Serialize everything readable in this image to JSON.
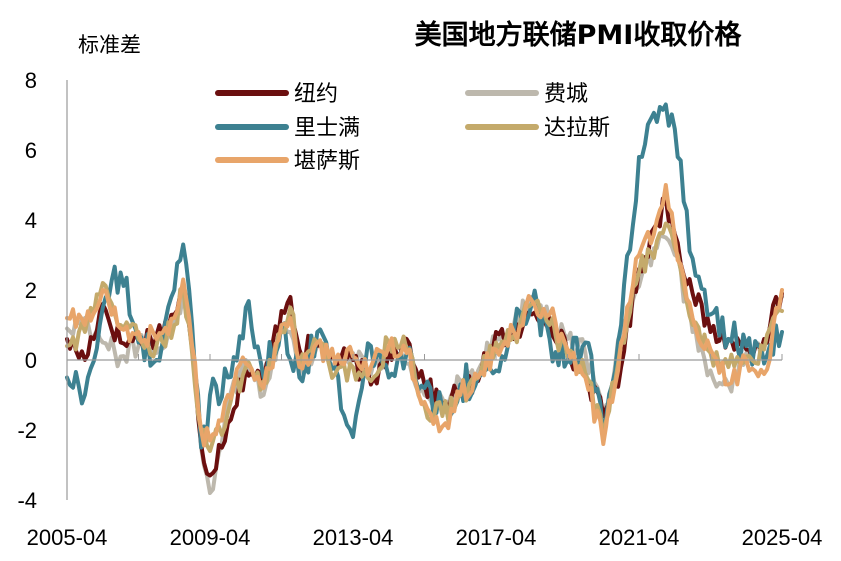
{
  "chart_data": {
    "type": "line",
    "title": "美国地方联储PMI收取价格",
    "ylabel": "标准差",
    "xlabel": "",
    "ylim": [
      -4,
      8
    ],
    "yticks": [
      -4,
      -2,
      0,
      2,
      4,
      6,
      8
    ],
    "xlim": [
      "2005-04",
      "2025-04"
    ],
    "xticks": [
      "2005-04",
      "2009-04",
      "2013-04",
      "2017-04",
      "2021-04",
      "2025-04"
    ],
    "grid": false,
    "legend_position": "top-left",
    "series": [
      {
        "name": "纽约",
        "color": "#6b0f0f",
        "points": [
          [
            "2005-04",
            0.6
          ],
          [
            "2005-10",
            0.0
          ],
          [
            "2006-04",
            1.6
          ],
          [
            "2006-10",
            0.5
          ],
          [
            "2007-04",
            0.6
          ],
          [
            "2007-10",
            0.7
          ],
          [
            "2008-04",
            1.3
          ],
          [
            "2008-07",
            2.0
          ],
          [
            "2008-10",
            0.3
          ],
          [
            "2009-01",
            -2.4
          ],
          [
            "2009-04",
            -3.3
          ],
          [
            "2009-10",
            -1.8
          ],
          [
            "2010-04",
            -0.3
          ],
          [
            "2010-10",
            -0.6
          ],
          [
            "2011-04",
            1.4
          ],
          [
            "2011-07",
            1.8
          ],
          [
            "2011-10",
            0.3
          ],
          [
            "2012-04",
            0.4
          ],
          [
            "2012-10",
            0.0
          ],
          [
            "2013-04",
            0.0
          ],
          [
            "2013-10",
            -0.7
          ],
          [
            "2014-04",
            0.2
          ],
          [
            "2014-10",
            0.6
          ],
          [
            "2015-04",
            -0.7
          ],
          [
            "2015-10",
            -1.3
          ],
          [
            "2016-04",
            -0.9
          ],
          [
            "2016-10",
            -0.6
          ],
          [
            "2017-04",
            0.8
          ],
          [
            "2017-10",
            0.6
          ],
          [
            "2018-04",
            1.3
          ],
          [
            "2018-10",
            1.2
          ],
          [
            "2019-04",
            0.2
          ],
          [
            "2019-10",
            -0.4
          ],
          [
            "2020-04",
            -1.6
          ],
          [
            "2020-10",
            -0.2
          ],
          [
            "2021-04",
            2.6
          ],
          [
            "2021-10",
            3.9
          ],
          [
            "2022-01",
            4.6
          ],
          [
            "2022-04",
            3.6
          ],
          [
            "2022-10",
            1.9
          ],
          [
            "2023-04",
            0.8
          ],
          [
            "2023-10",
            0.6
          ],
          [
            "2024-04",
            0.3
          ],
          [
            "2024-10",
            0.6
          ],
          [
            "2025-04",
            1.9
          ]
        ]
      },
      {
        "name": "费城",
        "color": "#bdb8ad",
        "points": [
          [
            "2005-04",
            0.9
          ],
          [
            "2005-10",
            1.2
          ],
          [
            "2006-04",
            0.5
          ],
          [
            "2006-10",
            0.1
          ],
          [
            "2007-04",
            0.4
          ],
          [
            "2007-10",
            0.2
          ],
          [
            "2008-04",
            1.1
          ],
          [
            "2008-07",
            1.9
          ],
          [
            "2008-10",
            0.5
          ],
          [
            "2009-01",
            -2.5
          ],
          [
            "2009-04",
            -3.8
          ],
          [
            "2009-10",
            -1.3
          ],
          [
            "2010-04",
            0.0
          ],
          [
            "2010-10",
            -1.0
          ],
          [
            "2011-04",
            1.0
          ],
          [
            "2011-07",
            0.8
          ],
          [
            "2011-10",
            -0.4
          ],
          [
            "2012-04",
            0.4
          ],
          [
            "2012-10",
            -0.2
          ],
          [
            "2013-04",
            0.2
          ],
          [
            "2013-10",
            -0.4
          ],
          [
            "2014-04",
            0.3
          ],
          [
            "2014-10",
            -0.1
          ],
          [
            "2015-04",
            -1.0
          ],
          [
            "2015-10",
            -1.1
          ],
          [
            "2016-04",
            -0.6
          ],
          [
            "2016-10",
            -0.3
          ],
          [
            "2017-04",
            0.6
          ],
          [
            "2017-10",
            1.0
          ],
          [
            "2018-04",
            1.8
          ],
          [
            "2018-10",
            1.1
          ],
          [
            "2019-04",
            0.6
          ],
          [
            "2019-10",
            0.2
          ],
          [
            "2020-04",
            -1.7
          ],
          [
            "2020-10",
            0.8
          ],
          [
            "2021-04",
            2.1
          ],
          [
            "2021-10",
            3.2
          ],
          [
            "2022-01",
            3.5
          ],
          [
            "2022-04",
            3.0
          ],
          [
            "2022-10",
            0.8
          ],
          [
            "2023-04",
            -0.3
          ],
          [
            "2023-10",
            -0.7
          ],
          [
            "2024-04",
            0.2
          ],
          [
            "2024-10",
            0.5
          ],
          [
            "2025-04",
            1.8
          ]
        ]
      },
      {
        "name": "里士满",
        "color": "#3d8191",
        "points": [
          [
            "2005-04",
            -0.5
          ],
          [
            "2005-10",
            -1.0
          ],
          [
            "2006-04",
            1.5
          ],
          [
            "2006-10",
            2.5
          ],
          [
            "2007-04",
            0.5
          ],
          [
            "2007-10",
            0.0
          ],
          [
            "2008-04",
            2.0
          ],
          [
            "2008-07",
            3.3
          ],
          [
            "2008-10",
            1.0
          ],
          [
            "2009-01",
            -2.5
          ],
          [
            "2009-04",
            -1.0
          ],
          [
            "2009-10",
            -0.5
          ],
          [
            "2010-04",
            1.5
          ],
          [
            "2010-10",
            -0.5
          ],
          [
            "2011-04",
            1.0
          ],
          [
            "2011-07",
            0.0
          ],
          [
            "2011-10",
            -0.5
          ],
          [
            "2012-04",
            0.8
          ],
          [
            "2012-10",
            -0.2
          ],
          [
            "2013-04",
            -2.2
          ],
          [
            "2013-10",
            0.4
          ],
          [
            "2014-04",
            -0.5
          ],
          [
            "2014-10",
            0.2
          ],
          [
            "2015-04",
            -0.8
          ],
          [
            "2015-10",
            -1.4
          ],
          [
            "2016-04",
            -0.7
          ],
          [
            "2016-10",
            -0.5
          ],
          [
            "2017-04",
            -0.3
          ],
          [
            "2017-10",
            0.8
          ],
          [
            "2018-04",
            1.6
          ],
          [
            "2018-10",
            0.6
          ],
          [
            "2019-04",
            0.0
          ],
          [
            "2019-10",
            0.5
          ],
          [
            "2020-04",
            -2.2
          ],
          [
            "2020-10",
            1.0
          ],
          [
            "2021-04",
            5.8
          ],
          [
            "2021-10",
            6.8
          ],
          [
            "2022-01",
            7.3
          ],
          [
            "2022-04",
            6.6
          ],
          [
            "2022-10",
            2.9
          ],
          [
            "2023-04",
            1.3
          ],
          [
            "2023-10",
            0.6
          ],
          [
            "2024-04",
            0.4
          ],
          [
            "2024-10",
            -0.1
          ],
          [
            "2025-04",
            0.8
          ]
        ]
      },
      {
        "name": "达拉斯",
        "color": "#c4aa6b",
        "points": [
          [
            "2005-04",
            0.4
          ],
          [
            "2005-10",
            0.8
          ],
          [
            "2006-04",
            2.2
          ],
          [
            "2006-10",
            1.0
          ],
          [
            "2007-04",
            0.6
          ],
          [
            "2007-10",
            0.4
          ],
          [
            "2008-04",
            1.0
          ],
          [
            "2008-07",
            2.1
          ],
          [
            "2008-10",
            0.2
          ],
          [
            "2009-01",
            -2.0
          ],
          [
            "2009-04",
            -2.6
          ],
          [
            "2009-10",
            -1.5
          ],
          [
            "2010-04",
            -0.2
          ],
          [
            "2010-10",
            -0.6
          ],
          [
            "2011-04",
            0.8
          ],
          [
            "2011-07",
            1.5
          ],
          [
            "2011-10",
            -0.1
          ],
          [
            "2012-04",
            0.5
          ],
          [
            "2012-10",
            -0.4
          ],
          [
            "2013-04",
            -0.2
          ],
          [
            "2013-10",
            -0.6
          ],
          [
            "2014-04",
            0.5
          ],
          [
            "2014-10",
            0.3
          ],
          [
            "2015-04",
            -1.3
          ],
          [
            "2015-10",
            -1.6
          ],
          [
            "2016-04",
            -1.0
          ],
          [
            "2016-10",
            -0.5
          ],
          [
            "2017-04",
            0.5
          ],
          [
            "2017-10",
            0.7
          ],
          [
            "2018-04",
            1.6
          ],
          [
            "2018-10",
            1.0
          ],
          [
            "2019-04",
            0.1
          ],
          [
            "2019-10",
            -0.4
          ],
          [
            "2020-04",
            -2.2
          ],
          [
            "2020-10",
            0.5
          ],
          [
            "2021-04",
            2.5
          ],
          [
            "2021-10",
            3.4
          ],
          [
            "2022-01",
            3.9
          ],
          [
            "2022-04",
            3.2
          ],
          [
            "2022-10",
            1.0
          ],
          [
            "2023-04",
            0.2
          ],
          [
            "2023-10",
            -0.2
          ],
          [
            "2024-04",
            0.1
          ],
          [
            "2024-10",
            0.3
          ],
          [
            "2025-04",
            1.4
          ]
        ]
      },
      {
        "name": "堪萨斯",
        "color": "#e8a56a",
        "points": [
          [
            "2005-04",
            1.2
          ],
          [
            "2005-10",
            1.0
          ],
          [
            "2006-04",
            2.0
          ],
          [
            "2006-10",
            0.9
          ],
          [
            "2007-04",
            0.8
          ],
          [
            "2007-10",
            0.6
          ],
          [
            "2008-04",
            1.2
          ],
          [
            "2008-07",
            2.3
          ],
          [
            "2008-10",
            0.4
          ],
          [
            "2009-01",
            -2.0
          ],
          [
            "2009-04",
            -2.3
          ],
          [
            "2009-10",
            -1.0
          ],
          [
            "2010-04",
            -0.1
          ],
          [
            "2010-10",
            -0.8
          ],
          [
            "2011-04",
            1.0
          ],
          [
            "2011-07",
            1.2
          ],
          [
            "2011-10",
            -0.2
          ],
          [
            "2012-04",
            0.5
          ],
          [
            "2012-10",
            -0.1
          ],
          [
            "2013-04",
            0.1
          ],
          [
            "2013-10",
            -0.2
          ],
          [
            "2014-04",
            0.4
          ],
          [
            "2014-10",
            0.2
          ],
          [
            "2015-04",
            -1.2
          ],
          [
            "2015-10",
            -1.9
          ],
          [
            "2016-04",
            -1.0
          ],
          [
            "2016-10",
            -0.5
          ],
          [
            "2017-04",
            0.3
          ],
          [
            "2017-10",
            0.8
          ],
          [
            "2018-04",
            1.7
          ],
          [
            "2018-10",
            1.3
          ],
          [
            "2019-04",
            0.3
          ],
          [
            "2019-10",
            -0.5
          ],
          [
            "2020-04",
            -2.4
          ],
          [
            "2020-10",
            0.5
          ],
          [
            "2021-04",
            3.0
          ],
          [
            "2021-10",
            4.0
          ],
          [
            "2022-01",
            5.0
          ],
          [
            "2022-04",
            3.5
          ],
          [
            "2022-10",
            1.2
          ],
          [
            "2023-04",
            0.3
          ],
          [
            "2023-10",
            -0.7
          ],
          [
            "2024-04",
            0.0
          ],
          [
            "2024-10",
            -0.4
          ],
          [
            "2025-04",
            2.0
          ]
        ]
      }
    ]
  }
}
